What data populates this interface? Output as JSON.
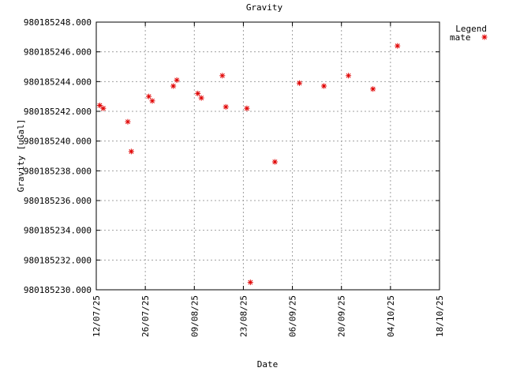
{
  "chart_data": {
    "type": "scatter",
    "title": "Gravity",
    "xlabel": "Date",
    "ylabel": "Gravity [uGal]",
    "legend": {
      "title": "Legend",
      "placement": "top-right",
      "entries": [
        {
          "name": "mate",
          "color": "#e00000",
          "marker": "asterisk"
        }
      ]
    },
    "grid": true,
    "xlim": [
      "2025-07-12",
      "2025-10-18"
    ],
    "ylim": [
      980185230.0,
      980185248.0
    ],
    "x_ticks": [
      "12/07/25",
      "26/07/25",
      "09/08/25",
      "23/08/25",
      "06/09/25",
      "20/09/25",
      "04/10/25",
      "18/10/25"
    ],
    "y_ticks": [
      "980185230.000",
      "980185232.000",
      "980185234.000",
      "980185236.000",
      "980185238.000",
      "980185240.000",
      "980185242.000",
      "980185244.000",
      "980185246.000",
      "980185248.000"
    ],
    "series": [
      {
        "name": "mate",
        "color": "#e00000",
        "points": [
          {
            "x": "2025-07-13",
            "y": 980185242.4
          },
          {
            "x": "2025-07-14",
            "y": 980185242.2
          },
          {
            "x": "2025-07-21",
            "y": 980185241.3
          },
          {
            "x": "2025-07-22",
            "y": 980185239.3
          },
          {
            "x": "2025-07-27",
            "y": 980185243.0
          },
          {
            "x": "2025-07-28",
            "y": 980185242.7
          },
          {
            "x": "2025-08-03",
            "y": 980185243.7
          },
          {
            "x": "2025-08-04",
            "y": 980185244.1
          },
          {
            "x": "2025-08-10",
            "y": 980185243.2
          },
          {
            "x": "2025-08-11",
            "y": 980185242.9
          },
          {
            "x": "2025-08-17",
            "y": 980185244.4
          },
          {
            "x": "2025-08-18",
            "y": 980185242.3
          },
          {
            "x": "2025-08-24",
            "y": 980185242.2
          },
          {
            "x": "2025-08-25",
            "y": 980185230.5
          },
          {
            "x": "2025-09-01",
            "y": 980185238.6
          },
          {
            "x": "2025-09-08",
            "y": 980185243.9
          },
          {
            "x": "2025-09-15",
            "y": 980185243.7
          },
          {
            "x": "2025-09-22",
            "y": 980185244.4
          },
          {
            "x": "2025-09-29",
            "y": 980185243.5
          },
          {
            "x": "2025-10-06",
            "y": 980185246.4
          }
        ]
      }
    ]
  }
}
